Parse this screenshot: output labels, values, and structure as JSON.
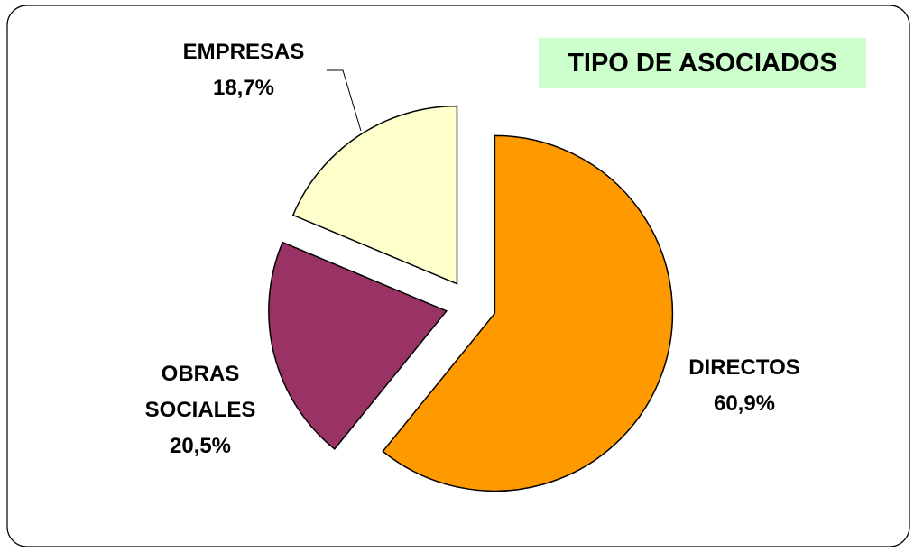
{
  "chart_data": {
    "type": "pie",
    "title": "TIPO DE ASOCIADOS",
    "categories": [
      "DIRECTOS",
      "OBRAS SOCIALES",
      "EMPRESAS"
    ],
    "values": [
      60.9,
      20.5,
      18.7
    ],
    "value_labels": [
      "60,9%",
      "20,5%",
      "18,7%"
    ],
    "colors": [
      "#FF9900",
      "#993366",
      "#FFFFCC"
    ]
  }
}
